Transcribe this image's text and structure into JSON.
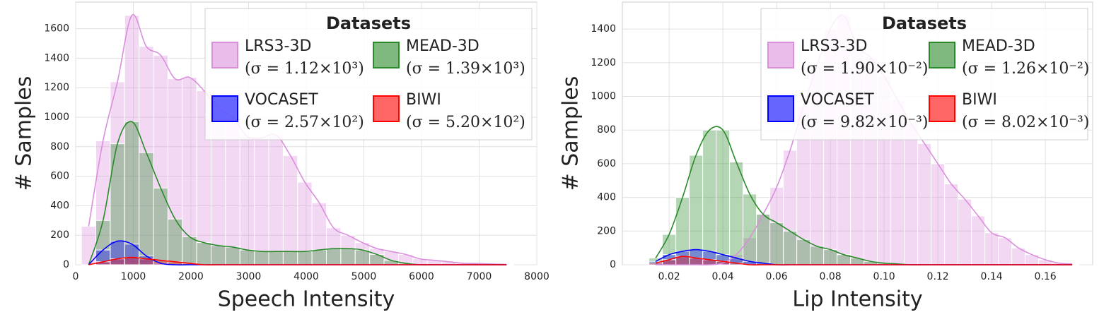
{
  "chart_data": [
    {
      "type": "histogram",
      "xlabel": "Speech Intensity",
      "ylabel": "# Samples",
      "xlim": [
        0,
        8000
      ],
      "ylim": [
        0,
        1780
      ],
      "xticks": [
        0,
        1000,
        2000,
        3000,
        4000,
        5000,
        6000,
        7000,
        8000
      ],
      "yticks": [
        0,
        200,
        400,
        600,
        800,
        1000,
        1200,
        1400,
        1600
      ],
      "grid": true,
      "legend": "upper right",
      "legend_title": "Datasets",
      "bins": [
        100,
        350,
        600,
        850,
        1100,
        1350,
        1600,
        1850,
        2100,
        2350,
        2600,
        2850,
        3100,
        3350,
        3600,
        3850,
        4100,
        4350,
        4600,
        4850,
        5100,
        5350,
        5600,
        5850,
        6100,
        6350,
        6600,
        6850,
        7100,
        7350,
        7600
      ],
      "series": [
        {
          "name": "LRS3-3D",
          "label": "(σ = 1.12×10³)",
          "color": "#da8fdc",
          "values": [
            260,
            840,
            1240,
            1690,
            1480,
            1420,
            1260,
            1270,
            1180,
            1060,
            1000,
            870,
            860,
            880,
            740,
            560,
            420,
            250,
            200,
            150,
            110,
            90,
            70,
            40,
            30,
            20,
            10,
            8,
            5,
            3
          ]
        },
        {
          "name": "MEAD-3D",
          "label": "(σ = 1.39×10³)",
          "color": "#2a8a2a",
          "values": [
            0,
            300,
            820,
            970,
            760,
            520,
            310,
            190,
            150,
            130,
            120,
            100,
            90,
            90,
            90,
            90,
            100,
            110,
            110,
            100,
            70,
            30,
            10,
            0,
            0,
            0,
            0,
            0,
            0,
            0
          ]
        },
        {
          "name": "VOCASET",
          "label": "(σ = 2.57×10²)",
          "color": "#0000ff",
          "values": [
            0,
            100,
            160,
            140,
            60,
            10,
            0,
            0,
            0,
            0,
            0,
            0,
            0,
            0,
            0,
            0,
            0,
            0,
            0,
            0,
            0,
            0,
            0,
            0,
            0,
            0,
            0,
            0,
            0,
            0
          ]
        },
        {
          "name": "BIWI",
          "label": "(σ = 5.20×10²)",
          "color": "#ff0000",
          "values": [
            0,
            20,
            40,
            50,
            40,
            30,
            20,
            10,
            0,
            0,
            0,
            0,
            0,
            0,
            0,
            0,
            0,
            0,
            0,
            0,
            0,
            0,
            0,
            0,
            0,
            0,
            0,
            0,
            0,
            0
          ]
        }
      ]
    },
    {
      "type": "histogram",
      "xlabel": "Lip Intensity",
      "ylabel": "# Samples",
      "xlim": [
        0.0026,
        0.1776
      ],
      "ylim": [
        0,
        1560
      ],
      "xticks": [
        0.02,
        0.04,
        0.06,
        0.08,
        {
          "value": 0.1,
          "label": "0.10"
        },
        0.12,
        0.14,
        0.16
      ],
      "yticks": [
        0,
        200,
        400,
        600,
        800,
        1000,
        1200,
        1400
      ],
      "grid": true,
      "legend": "upper right",
      "legend_title": "Datasets",
      "bins": [
        0.0125,
        0.0175,
        0.0225,
        0.0275,
        0.0325,
        0.0375,
        0.0425,
        0.0475,
        0.0525,
        0.0575,
        0.0625,
        0.0675,
        0.0725,
        0.0775,
        0.0825,
        0.0875,
        0.0925,
        0.0975,
        0.1025,
        0.1075,
        0.1125,
        0.1175,
        0.1225,
        0.1275,
        0.1325,
        0.1375,
        0.1425,
        0.1475,
        0.1525,
        0.1575,
        0.1625,
        0.1675,
        0.1725
      ],
      "series": [
        {
          "name": "LRS3-3D",
          "label": "(σ = 1.90×10⁻²)",
          "color": "#da8fdc",
          "values": [
            0,
            0,
            0,
            0,
            0,
            10,
            60,
            160,
            300,
            460,
            680,
            940,
            1180,
            1400,
            1480,
            1300,
            1230,
            1120,
            980,
            840,
            720,
            600,
            480,
            390,
            290,
            190,
            160,
            100,
            60,
            30,
            10,
            5
          ]
        },
        {
          "name": "MEAD-3D",
          "label": "(σ = 1.26×10⁻²)",
          "color": "#2a8a2a",
          "values": [
            40,
            180,
            400,
            650,
            800,
            800,
            610,
            420,
            300,
            250,
            200,
            150,
            110,
            90,
            60,
            40,
            20,
            10,
            5,
            0,
            0,
            0,
            0,
            0,
            0,
            0,
            0,
            0,
            0,
            0,
            0,
            0
          ]
        },
        {
          "name": "VOCASET",
          "label": "(σ = 9.82×10⁻³)",
          "color": "#0000ff",
          "values": [
            20,
            60,
            80,
            90,
            80,
            60,
            40,
            20,
            10,
            0,
            0,
            0,
            0,
            0,
            0,
            0,
            0,
            0,
            0,
            0,
            0,
            0,
            0,
            0,
            0,
            0,
            0,
            0,
            0,
            0,
            0,
            0
          ]
        },
        {
          "name": "BIWI",
          "label": "(σ = 8.02×10⁻³)",
          "color": "#ff0000",
          "values": [
            10,
            30,
            50,
            40,
            30,
            20,
            10,
            0,
            0,
            0,
            0,
            0,
            0,
            0,
            0,
            0,
            0,
            0,
            0,
            0,
            0,
            0,
            0,
            0,
            0,
            0,
            0,
            0,
            0,
            0,
            0,
            0
          ]
        }
      ]
    }
  ]
}
